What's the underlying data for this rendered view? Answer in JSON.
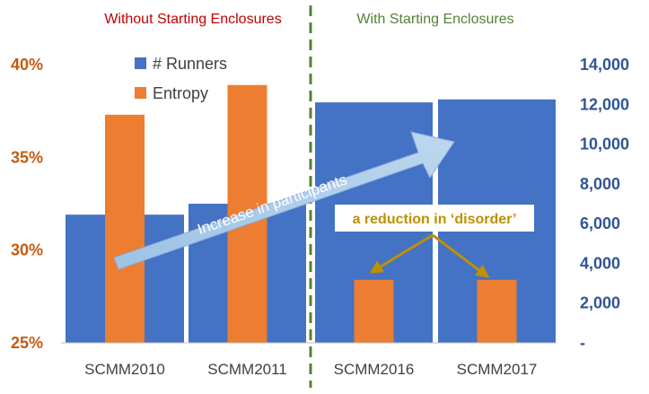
{
  "chart_data": {
    "type": "bar",
    "categories": [
      "SCMM2010",
      "SCMM2011",
      "SCMM2016",
      "SCMM2017"
    ],
    "series": [
      {
        "name": "# Runners",
        "axis": "right",
        "color": "#4472C4",
        "values": [
          6450,
          7000,
          12100,
          12250
        ]
      },
      {
        "name": "Entropy",
        "axis": "left",
        "color": "#ED7D31",
        "values": [
          0.373,
          0.389,
          0.284,
          0.284
        ]
      }
    ],
    "left_axis": {
      "min": 0.25,
      "max": 0.4,
      "ticks": [
        "25%",
        "30%",
        "35%",
        "40%"
      ],
      "color": "#C55A11"
    },
    "right_axis": {
      "min": 0,
      "max": 14000,
      "ticks": [
        "-",
        "2,000",
        "4,000",
        "6,000",
        "8,000",
        "10,000",
        "12,000",
        "14,000"
      ],
      "color": "#2F5597"
    },
    "legend": {
      "position": "top-left-inside",
      "items": [
        "# Runners",
        "Entropy"
      ]
    },
    "section_labels": {
      "left": {
        "text": "Without Starting Enclosures",
        "color": "#C00000"
      },
      "right": {
        "text": "With Starting Enclosures",
        "color": "#548235"
      }
    },
    "annotations": {
      "arrow_text": "Increase in participants",
      "callout_text": "a reduction in ‘disorder’",
      "callout_color": "#BF9000"
    },
    "divider_color": "#548235",
    "grid": false
  }
}
